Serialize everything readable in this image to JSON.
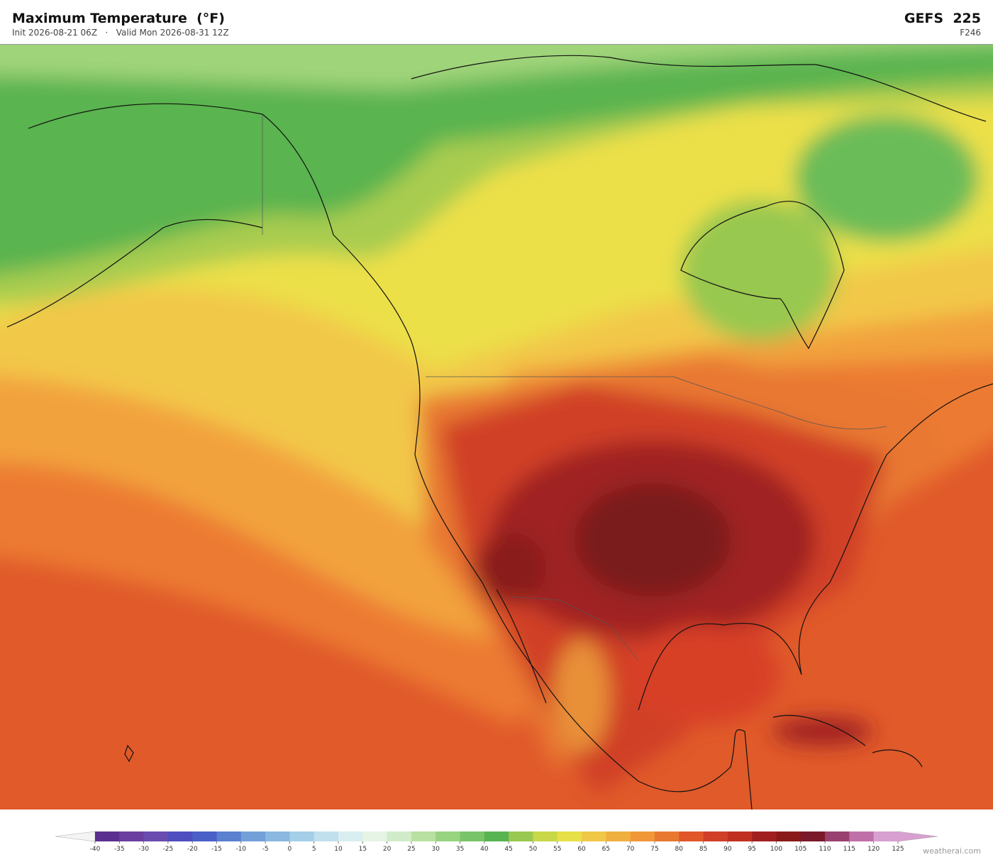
{
  "header": {
    "title": "Maximum Temperature  (°F)",
    "subtitle": "Init 2026-08-21 06Z   ·   Valid Mon 2026-08-31 12Z",
    "model": "GEFS  225",
    "forecast_hour": "F246"
  },
  "colorbar": {
    "ticks": [
      -40,
      -35,
      -30,
      -25,
      -20,
      -15,
      -10,
      -5,
      0,
      5,
      10,
      15,
      20,
      25,
      30,
      35,
      40,
      45,
      50,
      55,
      60,
      65,
      70,
      75,
      80,
      85,
      90,
      95,
      100,
      105,
      110,
      115,
      120,
      125
    ],
    "colors": [
      "#5a2f8f",
      "#6b3fa0",
      "#6a4bb0",
      "#4e4ec0",
      "#4a5fc8",
      "#5b80d0",
      "#74a0d8",
      "#8ab8e0",
      "#a5cfe8",
      "#c0e0ee",
      "#d8eef0",
      "#e6f4e6",
      "#d0ecc8",
      "#b8e0a0",
      "#98d480",
      "#78c468",
      "#58b450",
      "#98c850",
      "#c8d848",
      "#e8e048",
      "#f0c848",
      "#f0b040",
      "#f09838",
      "#e87830",
      "#e05828",
      "#d04028",
      "#c03020",
      "#a02020",
      "#8a1a1a",
      "#7a1a2a",
      "#9a4070",
      "#c070a8",
      "#d8a0d0"
    ],
    "extend_low_color": "#f4f4f4",
    "extend_high_color": "#d8a0d0"
  },
  "footer": {
    "credit": "weatherai.com"
  }
}
